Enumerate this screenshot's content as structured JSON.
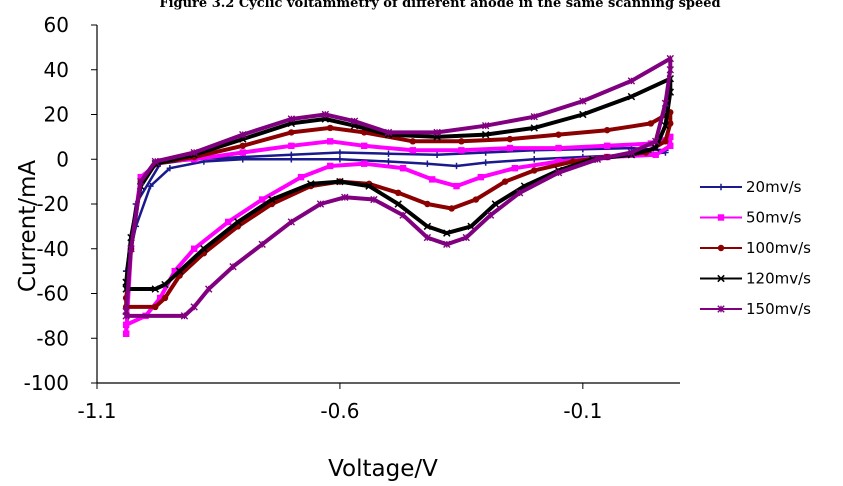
{
  "chart_data": {
    "type": "line",
    "title": "Figure 3.2 Cyclic voltammetry of different anode in the same scanning speed",
    "xlabel": "Voltage/V",
    "ylabel": "Current/mA",
    "xlim": [
      -1.1,
      0.1
    ],
    "ylim": [
      -100,
      60
    ],
    "x_ticks": [
      -1.1,
      -0.6,
      -0.1
    ],
    "y_ticks": [
      -100,
      -80,
      -60,
      -40,
      -20,
      0,
      20,
      40,
      60
    ],
    "x_tick_labels": [
      "-1.1",
      "-0.6",
      "-0.1"
    ],
    "y_tick_labels": [
      "-100",
      "-80",
      "-60",
      "-40",
      "-20",
      "0",
      "20",
      "40",
      "60"
    ],
    "grid": false,
    "legend_position": "right",
    "series": [
      {
        "name": "20mv/s",
        "color": "#1a1a8c",
        "marker": "plus",
        "points": [
          [
            -1.04,
            -50
          ],
          [
            -1.02,
            -30
          ],
          [
            -0.99,
            -12
          ],
          [
            -0.95,
            -4
          ],
          [
            -0.88,
            -1
          ],
          [
            -0.8,
            0
          ],
          [
            -0.7,
            0
          ],
          [
            -0.6,
            0
          ],
          [
            -0.5,
            -1
          ],
          [
            -0.42,
            -2
          ],
          [
            -0.36,
            -3
          ],
          [
            -0.3,
            -1.5
          ],
          [
            -0.2,
            0
          ],
          [
            -0.1,
            1
          ],
          [
            0,
            2
          ],
          [
            0.04,
            2.5
          ],
          [
            0.07,
            3
          ],
          [
            0.07,
            4
          ],
          [
            0.0,
            5
          ],
          [
            -0.1,
            4.5
          ],
          [
            -0.2,
            4
          ],
          [
            -0.3,
            3
          ],
          [
            -0.4,
            2
          ],
          [
            -0.5,
            2.5
          ],
          [
            -0.6,
            3
          ],
          [
            -0.7,
            2
          ],
          [
            -0.8,
            1
          ],
          [
            -0.9,
            0
          ],
          [
            -0.97,
            -2
          ],
          [
            -1.02,
            -20
          ],
          [
            -1.04,
            -50
          ]
        ]
      },
      {
        "name": "50mv/s",
        "color": "#ff00ff",
        "marker": "square",
        "points": [
          [
            -1.04,
            -78
          ],
          [
            -1.04,
            -74
          ],
          [
            -1.0,
            -70
          ],
          [
            -0.97,
            -62
          ],
          [
            -0.94,
            -50
          ],
          [
            -0.9,
            -40
          ],
          [
            -0.83,
            -28
          ],
          [
            -0.76,
            -18
          ],
          [
            -0.68,
            -8
          ],
          [
            -0.62,
            -3
          ],
          [
            -0.55,
            -2
          ],
          [
            -0.47,
            -4
          ],
          [
            -0.41,
            -9
          ],
          [
            -0.36,
            -12
          ],
          [
            -0.31,
            -8
          ],
          [
            -0.24,
            -4
          ],
          [
            -0.15,
            -1
          ],
          [
            -0.05,
            1
          ],
          [
            0.05,
            2
          ],
          [
            0.08,
            6
          ],
          [
            0.08,
            10
          ],
          [
            0.04,
            7
          ],
          [
            -0.05,
            6
          ],
          [
            -0.15,
            5
          ],
          [
            -0.25,
            5
          ],
          [
            -0.35,
            4
          ],
          [
            -0.45,
            4
          ],
          [
            -0.55,
            6
          ],
          [
            -0.62,
            8
          ],
          [
            -0.7,
            6
          ],
          [
            -0.8,
            3
          ],
          [
            -0.9,
            0
          ],
          [
            -0.97,
            -1
          ],
          [
            -1.01,
            -8
          ],
          [
            -1.03,
            -40
          ],
          [
            -1.04,
            -78
          ]
        ]
      },
      {
        "name": "100mv/s",
        "color": "#8b0000",
        "marker": "dot",
        "points": [
          [
            -1.04,
            -62
          ],
          [
            -1.04,
            -66
          ],
          [
            -0.98,
            -66
          ],
          [
            -0.96,
            -62
          ],
          [
            -0.93,
            -52
          ],
          [
            -0.88,
            -42
          ],
          [
            -0.81,
            -30
          ],
          [
            -0.74,
            -20
          ],
          [
            -0.66,
            -12
          ],
          [
            -0.6,
            -10
          ],
          [
            -0.54,
            -11
          ],
          [
            -0.48,
            -15
          ],
          [
            -0.42,
            -20
          ],
          [
            -0.37,
            -22
          ],
          [
            -0.32,
            -18
          ],
          [
            -0.26,
            -10
          ],
          [
            -0.2,
            -5
          ],
          [
            -0.12,
            -1
          ],
          [
            -0.05,
            1
          ],
          [
            0.03,
            3
          ],
          [
            0.07,
            8
          ],
          [
            0.08,
            16
          ],
          [
            0.08,
            21
          ],
          [
            0.04,
            16
          ],
          [
            -0.05,
            13
          ],
          [
            -0.15,
            11
          ],
          [
            -0.25,
            9
          ],
          [
            -0.35,
            8
          ],
          [
            -0.45,
            8
          ],
          [
            -0.55,
            12
          ],
          [
            -0.62,
            14
          ],
          [
            -0.7,
            12
          ],
          [
            -0.8,
            6
          ],
          [
            -0.9,
            1
          ],
          [
            -0.98,
            -2
          ],
          [
            -1.01,
            -10
          ],
          [
            -1.03,
            -40
          ],
          [
            -1.04,
            -62
          ]
        ]
      },
      {
        "name": "120mv/s",
        "color": "#000000",
        "marker": "cross",
        "points": [
          [
            -1.04,
            -55
          ],
          [
            -1.04,
            -58
          ],
          [
            -0.98,
            -58
          ],
          [
            -0.96,
            -56
          ],
          [
            -0.93,
            -50
          ],
          [
            -0.88,
            -40
          ],
          [
            -0.81,
            -28
          ],
          [
            -0.74,
            -18
          ],
          [
            -0.66,
            -11
          ],
          [
            -0.6,
            -10
          ],
          [
            -0.54,
            -12
          ],
          [
            -0.48,
            -20
          ],
          [
            -0.42,
            -30
          ],
          [
            -0.38,
            -33
          ],
          [
            -0.33,
            -30
          ],
          [
            -0.28,
            -20
          ],
          [
            -0.22,
            -12
          ],
          [
            -0.15,
            -5
          ],
          [
            -0.08,
            0
          ],
          [
            0.0,
            2
          ],
          [
            0.05,
            5
          ],
          [
            0.07,
            15
          ],
          [
            0.08,
            30
          ],
          [
            0.08,
            36
          ],
          [
            0.0,
            28
          ],
          [
            -0.1,
            20
          ],
          [
            -0.2,
            14
          ],
          [
            -0.3,
            11
          ],
          [
            -0.4,
            10
          ],
          [
            -0.5,
            11
          ],
          [
            -0.57,
            15
          ],
          [
            -0.63,
            18
          ],
          [
            -0.7,
            16
          ],
          [
            -0.8,
            9
          ],
          [
            -0.9,
            2
          ],
          [
            -0.98,
            -2
          ],
          [
            -1.01,
            -12
          ],
          [
            -1.03,
            -35
          ],
          [
            -1.04,
            -55
          ]
        ]
      },
      {
        "name": "150mv/s",
        "color": "#800080",
        "marker": "star",
        "points": [
          [
            -1.04,
            -68
          ],
          [
            -1.04,
            -70
          ],
          [
            -0.92,
            -70
          ],
          [
            -0.9,
            -66
          ],
          [
            -0.87,
            -58
          ],
          [
            -0.82,
            -48
          ],
          [
            -0.76,
            -38
          ],
          [
            -0.7,
            -28
          ],
          [
            -0.64,
            -20
          ],
          [
            -0.59,
            -17
          ],
          [
            -0.53,
            -18
          ],
          [
            -0.47,
            -25
          ],
          [
            -0.42,
            -35
          ],
          [
            -0.38,
            -38
          ],
          [
            -0.34,
            -35
          ],
          [
            -0.29,
            -25
          ],
          [
            -0.23,
            -15
          ],
          [
            -0.15,
            -6
          ],
          [
            -0.07,
            0
          ],
          [
            0.0,
            3
          ],
          [
            0.05,
            8
          ],
          [
            0.07,
            25
          ],
          [
            0.08,
            40
          ],
          [
            0.08,
            45
          ],
          [
            0.0,
            35
          ],
          [
            -0.1,
            26
          ],
          [
            -0.2,
            19
          ],
          [
            -0.3,
            15
          ],
          [
            -0.4,
            12
          ],
          [
            -0.5,
            12
          ],
          [
            -0.57,
            17
          ],
          [
            -0.63,
            20
          ],
          [
            -0.7,
            18
          ],
          [
            -0.8,
            11
          ],
          [
            -0.9,
            3
          ],
          [
            -0.98,
            -1
          ],
          [
            -1.01,
            -10
          ],
          [
            -1.03,
            -40
          ],
          [
            -1.04,
            -68
          ]
        ]
      }
    ]
  }
}
